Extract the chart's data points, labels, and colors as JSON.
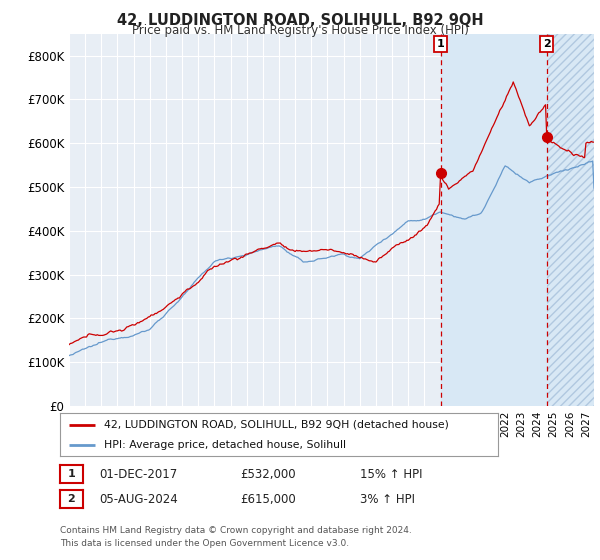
{
  "title": "42, LUDDINGTON ROAD, SOLIHULL, B92 9QH",
  "subtitle": "Price paid vs. HM Land Registry's House Price Index (HPI)",
  "ylim": [
    0,
    850000
  ],
  "yticks": [
    0,
    100000,
    200000,
    300000,
    400000,
    500000,
    600000,
    700000,
    800000
  ],
  "xlim_start": 1995.0,
  "xlim_end": 2027.5,
  "background_color": "#ffffff",
  "plot_bg_color": "#e8eef5",
  "grid_color": "#ffffff",
  "red_line_color": "#cc0000",
  "blue_line_color": "#6699cc",
  "vline_color": "#cc0000",
  "marker1_x": 2018.0,
  "marker1_y": 532000,
  "marker2_x": 2024.58,
  "marker2_y": 615000,
  "marker1_label": "1",
  "marker2_label": "2",
  "shade_color": "#d0e0f0",
  "hatch_color": "#aabbcc",
  "legend_red_label": "42, LUDDINGTON ROAD, SOLIHULL, B92 9QH (detached house)",
  "legend_blue_label": "HPI: Average price, detached house, Solihull",
  "table_row1": [
    "1",
    "01-DEC-2017",
    "£532,000",
    "15% ↑ HPI"
  ],
  "table_row2": [
    "2",
    "05-AUG-2024",
    "£615,000",
    "3% ↑ HPI"
  ],
  "footnote": "Contains HM Land Registry data © Crown copyright and database right 2024.\nThis data is licensed under the Open Government Licence v3.0."
}
